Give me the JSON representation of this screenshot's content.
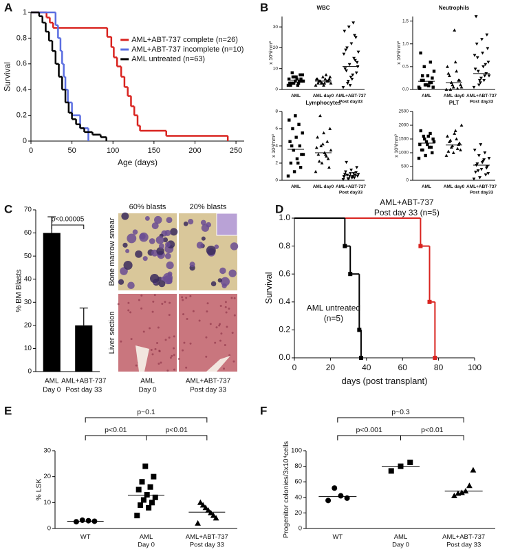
{
  "chart_data": [
    {
      "panel": "A",
      "type": "survival",
      "xlabel": "Age (days)",
      "ylabel": "Survival",
      "xlim": [
        0,
        260
      ],
      "ylim": [
        0,
        1
      ],
      "xticks": [
        0,
        50,
        100,
        150,
        200,
        250
      ],
      "yticks": [
        0,
        0.2,
        0.4,
        0.6,
        0.8,
        1
      ],
      "legend": "upper right",
      "series": [
        {
          "name": "AML+ABT-737 complete (n=26)",
          "color": "#d9231f",
          "x": [
            0,
            19,
            23,
            27,
            93,
            98,
            101,
            105,
            110,
            114,
            118,
            122,
            126,
            130,
            133,
            165,
            240
          ],
          "values": [
            1,
            0.96,
            0.92,
            0.88,
            0.81,
            0.73,
            0.65,
            0.58,
            0.5,
            0.42,
            0.35,
            0.27,
            0.2,
            0.12,
            0.08,
            0.04,
            0
          ]
        },
        {
          "name": "AML+ABT-737 incomplete (n=10)",
          "color": "#5b6ee1",
          "x": [
            0,
            30,
            33,
            36,
            38,
            40,
            42,
            45,
            50,
            60,
            70
          ],
          "values": [
            1,
            0.9,
            0.8,
            0.7,
            0.6,
            0.5,
            0.4,
            0.3,
            0.2,
            0.1,
            0
          ]
        },
        {
          "name": "AML untreated (n=63)",
          "color": "#000000",
          "x": [
            0,
            10,
            14,
            18,
            22,
            26,
            30,
            34,
            38,
            42,
            46,
            50,
            55,
            60,
            65,
            75,
            85,
            92
          ],
          "values": [
            1,
            0.97,
            0.92,
            0.85,
            0.78,
            0.7,
            0.6,
            0.5,
            0.4,
            0.3,
            0.22,
            0.17,
            0.13,
            0.1,
            0.07,
            0.05,
            0.03,
            0
          ]
        }
      ]
    },
    {
      "panel": "B",
      "type": "dotplot",
      "title": "WBC",
      "ylabel": "x 10³/mm³",
      "ylim": [
        0,
        35
      ],
      "yticks": [
        0,
        10,
        20,
        30
      ],
      "groups": [
        {
          "label": [
            "AML"
          ],
          "marker": "square",
          "values": [
            2,
            3,
            4,
            5,
            6,
            7,
            3,
            4,
            5,
            2,
            6,
            4,
            3,
            5,
            7,
            8,
            2,
            4,
            6,
            3
          ],
          "median": 4.5
        },
        {
          "label": [
            "AML day0"
          ],
          "marker": "triangle",
          "values": [
            2,
            3,
            4,
            5,
            3,
            4,
            5,
            6,
            4,
            3,
            2,
            5,
            4,
            3,
            6,
            4,
            5,
            3,
            4,
            7
          ],
          "median": 4
        },
        {
          "label": [
            "AML+ABT-737",
            "Post day33"
          ],
          "marker": "triangle-down",
          "values": [
            1,
            3,
            5,
            8,
            10,
            12,
            15,
            18,
            20,
            22,
            25,
            28,
            30,
            32,
            11,
            9,
            6,
            14,
            17,
            4,
            7,
            13,
            19,
            2,
            26
          ],
          "median": 11
        }
      ]
    },
    {
      "type": "dotplot",
      "title": "Neutrophils",
      "ylabel": "x 10³/mm³",
      "ylim": [
        0,
        1.6
      ],
      "yticks": [
        {
          "value": 0,
          "label": "0.0"
        },
        0.5,
        {
          "value": 1,
          "label": "1.0"
        },
        1.5
      ],
      "groups": [
        {
          "label": [
            "AML"
          ],
          "marker": "square",
          "values": [
            0.05,
            0.1,
            0.15,
            0.2,
            0.3,
            0.4,
            0.5,
            0.6,
            0.8,
            0.1,
            0.05,
            0.2,
            0.15,
            0.02,
            0.1,
            0.25,
            0.3,
            0.08
          ],
          "median": 0.18
        },
        {
          "label": [
            "AML day0"
          ],
          "marker": "triangle",
          "values": [
            0,
            0.05,
            0.1,
            0.15,
            0.2,
            0.3,
            0.4,
            0.5,
            1.3,
            0.05,
            0.1,
            0.2,
            0,
            0.02,
            0.35,
            0.6
          ],
          "median": 0.15
        },
        {
          "label": [
            "AML+ABT-737",
            "Post day33"
          ],
          "marker": "triangle-down",
          "values": [
            0.05,
            0.1,
            0.2,
            0.3,
            0.4,
            0.5,
            0.6,
            0.7,
            0.8,
            0.9,
            1,
            1.1,
            1.2,
            1.6,
            0.25,
            0.35,
            0.45,
            0.15,
            0.55,
            0.75,
            0.2,
            0.3
          ],
          "median": 0.35
        }
      ]
    },
    {
      "type": "dotplot",
      "title": "Lymphocytes",
      "ylabel": "x 10³/mm³",
      "ylim": [
        0,
        8
      ],
      "yticks": [
        0,
        2,
        4,
        6,
        8
      ],
      "groups": [
        {
          "label": [
            "AML"
          ],
          "marker": "square",
          "values": [
            0.5,
            1,
            1.5,
            2,
            2.5,
            3,
            3.5,
            4,
            4.5,
            5,
            5.5,
            6,
            6.5,
            7,
            7.5,
            3,
            4,
            2
          ],
          "median": 3.6
        },
        {
          "label": [
            "AML day0"
          ],
          "marker": "triangle",
          "values": [
            1,
            2,
            2.5,
            3,
            3.2,
            3.5,
            4,
            4.5,
            5,
            5.5,
            6,
            7.5,
            2.8,
            3.8,
            4.2,
            1.5,
            2.2,
            3
          ],
          "median": 3.2
        },
        {
          "label": [
            "AML+ABT-737",
            "Post day33"
          ],
          "marker": "triangle-down",
          "values": [
            0.1,
            0.2,
            0.3,
            0.4,
            0.5,
            0.6,
            0.7,
            0.8,
            0.9,
            1,
            1.2,
            1.5,
            2.1,
            0.3,
            0.5,
            0.6,
            0.4,
            0.7,
            0.2,
            0.8
          ],
          "median": 0.6
        }
      ]
    },
    {
      "type": "dotplot",
      "title": "PLT",
      "ylabel": "x 10³/mm³",
      "ylim": [
        0,
        2500
      ],
      "yticks": [
        0,
        500,
        1000,
        1500,
        2000,
        2500
      ],
      "groups": [
        {
          "label": [
            "AML"
          ],
          "marker": "square",
          "values": [
            800,
            900,
            1000,
            1100,
            1200,
            1300,
            1400,
            1500,
            1600,
            1700,
            1800,
            1300,
            1400,
            1500,
            1200,
            1100,
            1600
          ],
          "median": 1350
        },
        {
          "label": [
            "AML day0"
          ],
          "marker": "triangle",
          "values": [
            900,
            1000,
            1100,
            1200,
            1300,
            1400,
            1500,
            1600,
            1700,
            2000,
            1250,
            1350,
            1450,
            1150,
            1050,
            1800
          ],
          "median": 1280
        },
        {
          "label": [
            "AML+ABT-737",
            "Post day33"
          ],
          "marker": "triangle-down",
          "values": [
            50,
            100,
            200,
            300,
            400,
            500,
            600,
            700,
            800,
            900,
            1000,
            1100,
            1300,
            450,
            550,
            650,
            250,
            350,
            750
          ],
          "median": 550
        }
      ]
    },
    {
      "panel": "C",
      "type": "bar",
      "ylabel": "% BM Blasts",
      "ylim": [
        0,
        70
      ],
      "yticks": [
        0,
        10,
        20,
        30,
        40,
        50,
        60,
        70
      ],
      "categories": [
        [
          "AML",
          "Day 0"
        ],
        [
          "AML+ABT-737",
          "Post day 33"
        ]
      ],
      "values": [
        60,
        20
      ],
      "errors": [
        7,
        7.5
      ],
      "color": "#000000",
      "annotations": [
        "p<0.00005"
      ],
      "micrographs": {
        "columns": [
          "60% blasts",
          "20% blasts"
        ],
        "rows": [
          "Bone marrow smear",
          "Liver section"
        ],
        "captions": [
          [
            "AML",
            "Day 0"
          ],
          [
            "AML+ABT-737",
            "Post day 33"
          ]
        ]
      }
    },
    {
      "panel": "D",
      "type": "survival",
      "xlabel": "days (post transplant)",
      "ylabel": "Survival",
      "xlim": [
        0,
        100
      ],
      "ylim": [
        0,
        1
      ],
      "xticks": [
        0,
        20,
        40,
        60,
        80,
        100
      ],
      "yticks": [
        {
          "value": 0,
          "label": "0.0"
        },
        0.2,
        0.4,
        0.6,
        0.8,
        {
          "value": 1,
          "label": "1.0"
        }
      ],
      "markers": true,
      "series": [
        {
          "label": [
            "AML+ABT-737",
            "Post day 33 (n=5)"
          ],
          "color": "#d9231f",
          "x": [
            0,
            70,
            75,
            78
          ],
          "values": [
            1,
            0.8,
            0.4,
            0
          ]
        },
        {
          "label": [
            "AML untreated",
            "(n=5)"
          ],
          "color": "#000000",
          "x": [
            0,
            28,
            31,
            36,
            37
          ],
          "values": [
            1,
            0.8,
            0.6,
            0.2,
            0
          ]
        }
      ]
    },
    {
      "panel": "E",
      "type": "dotplot",
      "ylabel": "% LSK",
      "ylim": [
        0,
        30
      ],
      "yticks": [
        0,
        10,
        20,
        30
      ],
      "annotations": [
        "p~0.1",
        "p<0.01",
        "p<0.01"
      ],
      "groups": [
        {
          "label": [
            "WT"
          ],
          "marker": "circle",
          "values": [
            2.6,
            2.8,
            3.0,
            3.2
          ],
          "median": 2.8
        },
        {
          "label": [
            "AML",
            "Day 0"
          ],
          "marker": "square",
          "values": [
            5,
            8,
            9,
            10,
            11,
            12,
            13,
            15,
            16,
            18,
            20,
            24
          ],
          "median": 12.8
        },
        {
          "label": [
            "AML+ABT-737",
            "Post day 33"
          ],
          "marker": "triangle",
          "values": [
            2,
            4,
            5,
            6,
            7,
            8,
            9,
            10
          ],
          "median": 6.3
        }
      ]
    },
    {
      "panel": "F",
      "type": "dotplot",
      "ylabel": "Progenitor colonies/3x10⁴cells",
      "ylim": [
        0,
        100
      ],
      "yticks": [
        0,
        20,
        40,
        60,
        80,
        100
      ],
      "annotations": [
        "p~0.3",
        "p<0.001",
        "p<0.01"
      ],
      "groups": [
        {
          "label": [
            "WT"
          ],
          "marker": "circle",
          "values": [
            36,
            39,
            42,
            52
          ],
          "median": 41
        },
        {
          "label": [
            "AML",
            "Day 0"
          ],
          "marker": "square",
          "values": [
            74,
            80,
            85
          ],
          "median": 80
        },
        {
          "label": [
            "AML+ABT-737",
            "Post day 33"
          ],
          "marker": "triangle",
          "values": [
            42,
            45,
            46,
            48,
            55,
            75
          ],
          "median": 48
        }
      ]
    }
  ]
}
